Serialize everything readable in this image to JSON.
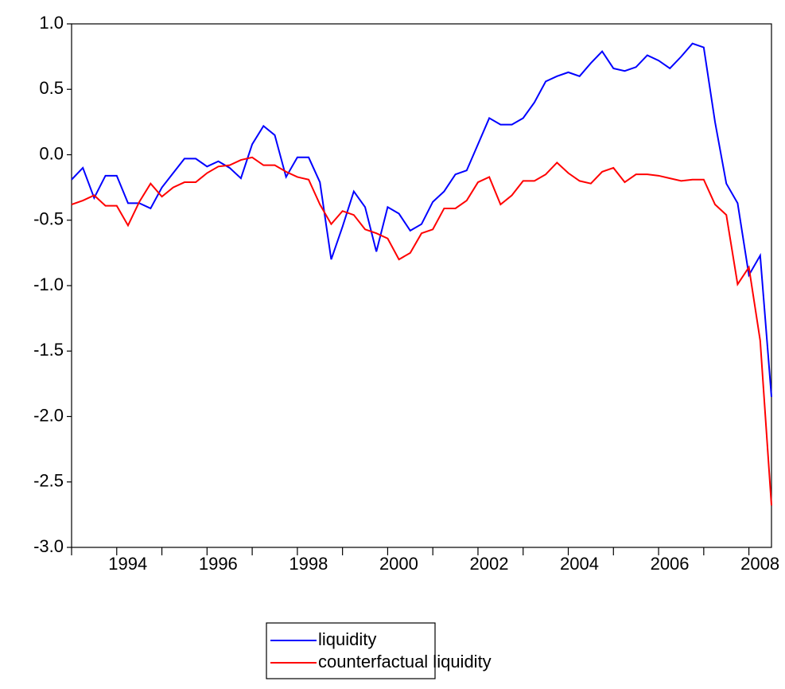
{
  "chart_data": {
    "type": "line",
    "x": [
      1993,
      1993.25,
      1993.5,
      1993.75,
      1994,
      1994.25,
      1994.5,
      1994.75,
      1995,
      1995.25,
      1995.5,
      1995.75,
      1996,
      1996.25,
      1996.5,
      1996.75,
      1997,
      1997.25,
      1997.5,
      1997.75,
      1998,
      1998.25,
      1998.5,
      1998.75,
      1999,
      1999.25,
      1999.5,
      1999.75,
      2000,
      2000.25,
      2000.5,
      2000.75,
      2001,
      2001.25,
      2001.5,
      2001.75,
      2002,
      2002.25,
      2002.5,
      2002.75,
      2003,
      2003.25,
      2003.5,
      2003.75,
      2004,
      2004.25,
      2004.5,
      2004.75,
      2005,
      2005.25,
      2005.5,
      2005.75,
      2006,
      2006.25,
      2006.5,
      2006.75,
      2007,
      2007.25,
      2007.5,
      2007.75,
      2008,
      2008.25,
      2008.5
    ],
    "series": [
      {
        "name": "liquidity",
        "color": "#0000ff",
        "values": [
          -0.19,
          -0.1,
          -0.33,
          -0.16,
          -0.16,
          -0.37,
          -0.37,
          -0.41,
          -0.25,
          -0.14,
          -0.03,
          -0.03,
          -0.09,
          -0.05,
          -0.1,
          -0.18,
          0.08,
          0.22,
          0.15,
          -0.17,
          -0.02,
          -0.02,
          -0.21,
          -0.8,
          -0.55,
          -0.28,
          -0.4,
          -0.74,
          -0.4,
          -0.45,
          -0.58,
          -0.53,
          -0.36,
          -0.28,
          -0.15,
          -0.12,
          0.08,
          0.28,
          0.23,
          0.23,
          0.28,
          0.4,
          0.56,
          0.6,
          0.63,
          0.6,
          0.7,
          0.79,
          0.66,
          0.64,
          0.67,
          0.76,
          0.72,
          0.66,
          0.75,
          0.85,
          0.82,
          0.25,
          -0.22,
          -0.37,
          -0.92,
          -0.77,
          -1.85
        ]
      },
      {
        "name": "counterfactual liquidity",
        "color": "#ff0000",
        "values": [
          -0.38,
          -0.35,
          -0.31,
          -0.39,
          -0.39,
          -0.54,
          -0.36,
          -0.22,
          -0.32,
          -0.25,
          -0.21,
          -0.21,
          -0.14,
          -0.09,
          -0.08,
          -0.04,
          -0.02,
          -0.08,
          -0.08,
          -0.13,
          -0.17,
          -0.19,
          -0.38,
          -0.53,
          -0.43,
          -0.46,
          -0.57,
          -0.6,
          -0.64,
          -0.8,
          -0.75,
          -0.6,
          -0.57,
          -0.41,
          -0.41,
          -0.35,
          -0.21,
          -0.17,
          -0.38,
          -0.31,
          -0.2,
          -0.2,
          -0.15,
          -0.06,
          -0.14,
          -0.2,
          -0.22,
          -0.13,
          -0.1,
          -0.21,
          -0.15,
          -0.15,
          -0.16,
          -0.18,
          -0.2,
          -0.19,
          -0.19,
          -0.38,
          -0.46,
          -0.99,
          -0.86,
          -1.42,
          -2.68
        ]
      }
    ],
    "xlim": [
      1993,
      2008.5
    ],
    "xticks": [
      1994,
      1996,
      1998,
      2000,
      2002,
      2004,
      2006,
      2008
    ],
    "xminorticks": [
      1993,
      1995,
      1997,
      1999,
      2001,
      2003,
      2005,
      2007
    ],
    "ylim": [
      -3,
      1
    ],
    "yticks": [
      {
        "value": 1,
        "label": "1.0"
      },
      0.5,
      {
        "value": 0,
        "label": "0.0"
      },
      -0.5,
      {
        "value": -1,
        "label": "-1.0"
      },
      -1.5,
      {
        "value": -2,
        "label": "-2.0"
      },
      -2.5,
      {
        "value": -3,
        "label": "-3.0"
      }
    ],
    "grid": false,
    "legend": "bottom"
  }
}
